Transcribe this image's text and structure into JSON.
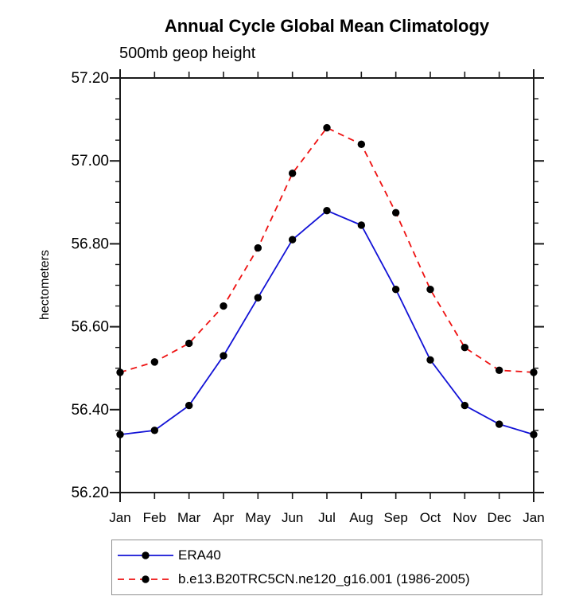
{
  "title": "Annual Cycle Global Mean Climatology",
  "subtitle": "500mb geop height",
  "chart_data": {
    "type": "line",
    "categories": [
      "Jan",
      "Feb",
      "Mar",
      "Apr",
      "May",
      "Jun",
      "Jul",
      "Aug",
      "Sep",
      "Oct",
      "Nov",
      "Dec",
      "Jan"
    ],
    "series": [
      {
        "name": "ERA40",
        "color": "#1212d6",
        "line_style": "solid",
        "marker": "black-dot",
        "values": [
          56.34,
          56.35,
          56.41,
          56.53,
          56.67,
          56.81,
          56.88,
          56.845,
          56.69,
          56.52,
          56.41,
          56.365,
          56.34
        ]
      },
      {
        "name": "b.e13.B20TRC5CN.ne120_g16.001 (1986-2005)",
        "color": "#ee1111",
        "line_style": "dashed",
        "marker": "black-dot",
        "values": [
          56.49,
          56.515,
          56.56,
          56.65,
          56.79,
          56.97,
          57.08,
          57.04,
          56.875,
          56.69,
          56.55,
          56.495,
          56.49
        ]
      }
    ],
    "xlabel": "",
    "ylabel": "hectometers",
    "ylim": [
      56.2,
      57.2
    ],
    "ytick_major": 0.2,
    "ytick_minor": 0.05,
    "ytick_labels": [
      "57.20",
      "57.00",
      "56.80",
      "56.60",
      "56.40",
      "56.20"
    ],
    "grid": false,
    "axis_color": "#1a1a1a",
    "marker_color": "#000000",
    "legend_position": "bottom-left"
  }
}
